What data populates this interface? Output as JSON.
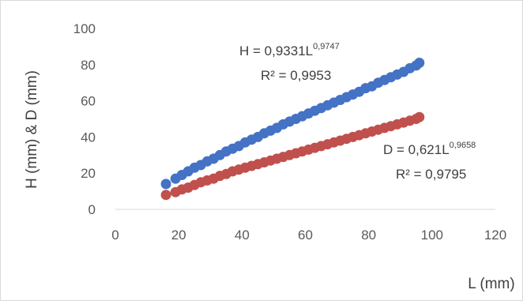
{
  "chart_data": {
    "type": "scatter",
    "xlabel": "L (mm)",
    "ylabel": "H (mm) & D (mm)",
    "xlim": [
      0,
      120
    ],
    "ylim": [
      0,
      100
    ],
    "xticks": [
      "0",
      "20",
      "40",
      "60",
      "80",
      "100",
      "120"
    ],
    "yticks": [
      "0",
      "20",
      "40",
      "60",
      "80",
      "100"
    ],
    "grid": false,
    "series": [
      {
        "name": "H",
        "color": "#4472c4",
        "trend": {
          "a": 0.9331,
          "b": 0.9747
        },
        "equation_base": "H = 0,9331L",
        "equation_exp": "0,9747",
        "r2_label": "R² = 0,9953",
        "x": [
          16,
          19,
          21,
          23,
          25,
          27,
          29,
          31,
          33,
          35,
          37,
          39,
          41,
          43,
          45,
          47,
          49,
          51,
          53,
          55,
          57,
          59,
          61,
          63,
          65,
          67,
          69,
          71,
          73,
          75,
          77,
          79,
          81,
          83,
          85,
          87,
          89,
          91,
          93,
          95,
          96
        ],
        "y": [
          14,
          17,
          19,
          21,
          23,
          24.5,
          26.5,
          28,
          30,
          32,
          33.5,
          35,
          37,
          38.5,
          40,
          42,
          43.5,
          45,
          47,
          48.5,
          50,
          51.5,
          53,
          54.5,
          56,
          57.5,
          59,
          60.5,
          62,
          63.5,
          65,
          67,
          68,
          70,
          71.5,
          73,
          74.5,
          76,
          78,
          79.5,
          81
        ]
      },
      {
        "name": "D",
        "color": "#c0504d",
        "trend": {
          "a": 0.621,
          "b": 0.9658
        },
        "equation_base": "D = 0,621L",
        "equation_exp": "0,9658",
        "r2_label": "R² = 0,9795",
        "x": [
          16,
          19,
          21,
          23,
          25,
          27,
          29,
          31,
          33,
          35,
          37,
          39,
          41,
          43,
          45,
          47,
          49,
          51,
          53,
          55,
          57,
          59,
          61,
          63,
          65,
          67,
          69,
          71,
          73,
          75,
          77,
          79,
          81,
          83,
          85,
          87,
          89,
          91,
          93,
          95,
          96
        ],
        "y": [
          8,
          9.5,
          11,
          12,
          13.5,
          15,
          16,
          17,
          18.5,
          19.5,
          21,
          22,
          23,
          24,
          25,
          26,
          27,
          28,
          29,
          30,
          31,
          32,
          33,
          34,
          35,
          36,
          37,
          38,
          39,
          40,
          41,
          42,
          43,
          44,
          45,
          46,
          47,
          48,
          49,
          50,
          51
        ]
      }
    ]
  }
}
